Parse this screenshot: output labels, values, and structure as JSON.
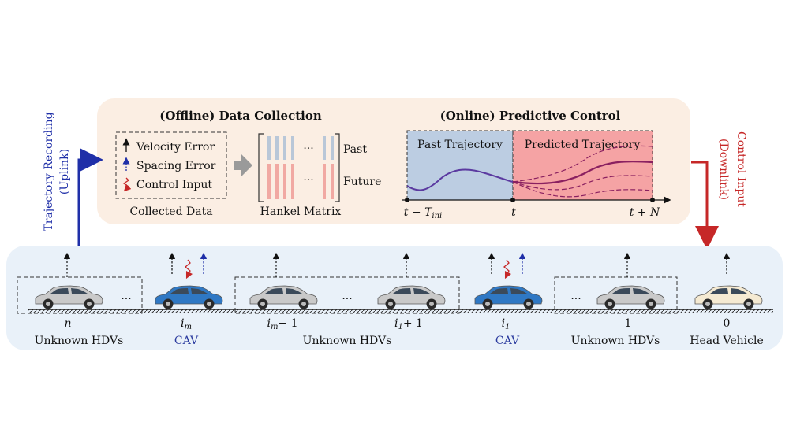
{
  "offline": {
    "title": "(Offline) Data Collection",
    "legend": [
      "Velocity Error",
      "Spacing Error",
      "Control Input"
    ],
    "collected_label": "Collected Data",
    "hankel_label": "Hankel Matrix",
    "past_label": "Past",
    "future_label": "Future",
    "dots": "···"
  },
  "online": {
    "title": "(Online) Predictive Control",
    "past_traj": "Past Trajectory",
    "pred_traj": "Predicted Trajectory",
    "tick_start": "t − T",
    "tick_start_sub": "ini",
    "tick_mid": "t",
    "tick_end": "t + N"
  },
  "side": {
    "uplink_line1": "Trajectory Recording",
    "uplink_line2": "(Uplink)",
    "downlink_line1": "Control Input",
    "downlink_line2": "(Downlink)"
  },
  "platoon": {
    "dots": "···",
    "indices": [
      "n",
      "i",
      "m",
      "i",
      "m",
      "− 1",
      "i",
      "1",
      "+ 1",
      "i",
      "1",
      "1",
      "0"
    ],
    "groups": [
      "Unknown HDVs",
      "CAV",
      "Unknown HDVs",
      "CAV",
      "Unknown HDVs",
      "Head Vehicle"
    ]
  },
  "colors": {
    "offline_bg": "#fbeee3",
    "platoon_bg": "#e9f1f9",
    "past_region": "#bccde2",
    "pred_region": "#f5a3a4",
    "uplink": "#1f2fa8",
    "downlink": "#c62828",
    "cav_car": "#2f78c4",
    "hdv_car": "#c9c9c9",
    "head_car": "#f5ead2",
    "cav_text": "#2a3a9e",
    "curve": "#5b3aa0",
    "pred_curve": "#8a2060"
  }
}
